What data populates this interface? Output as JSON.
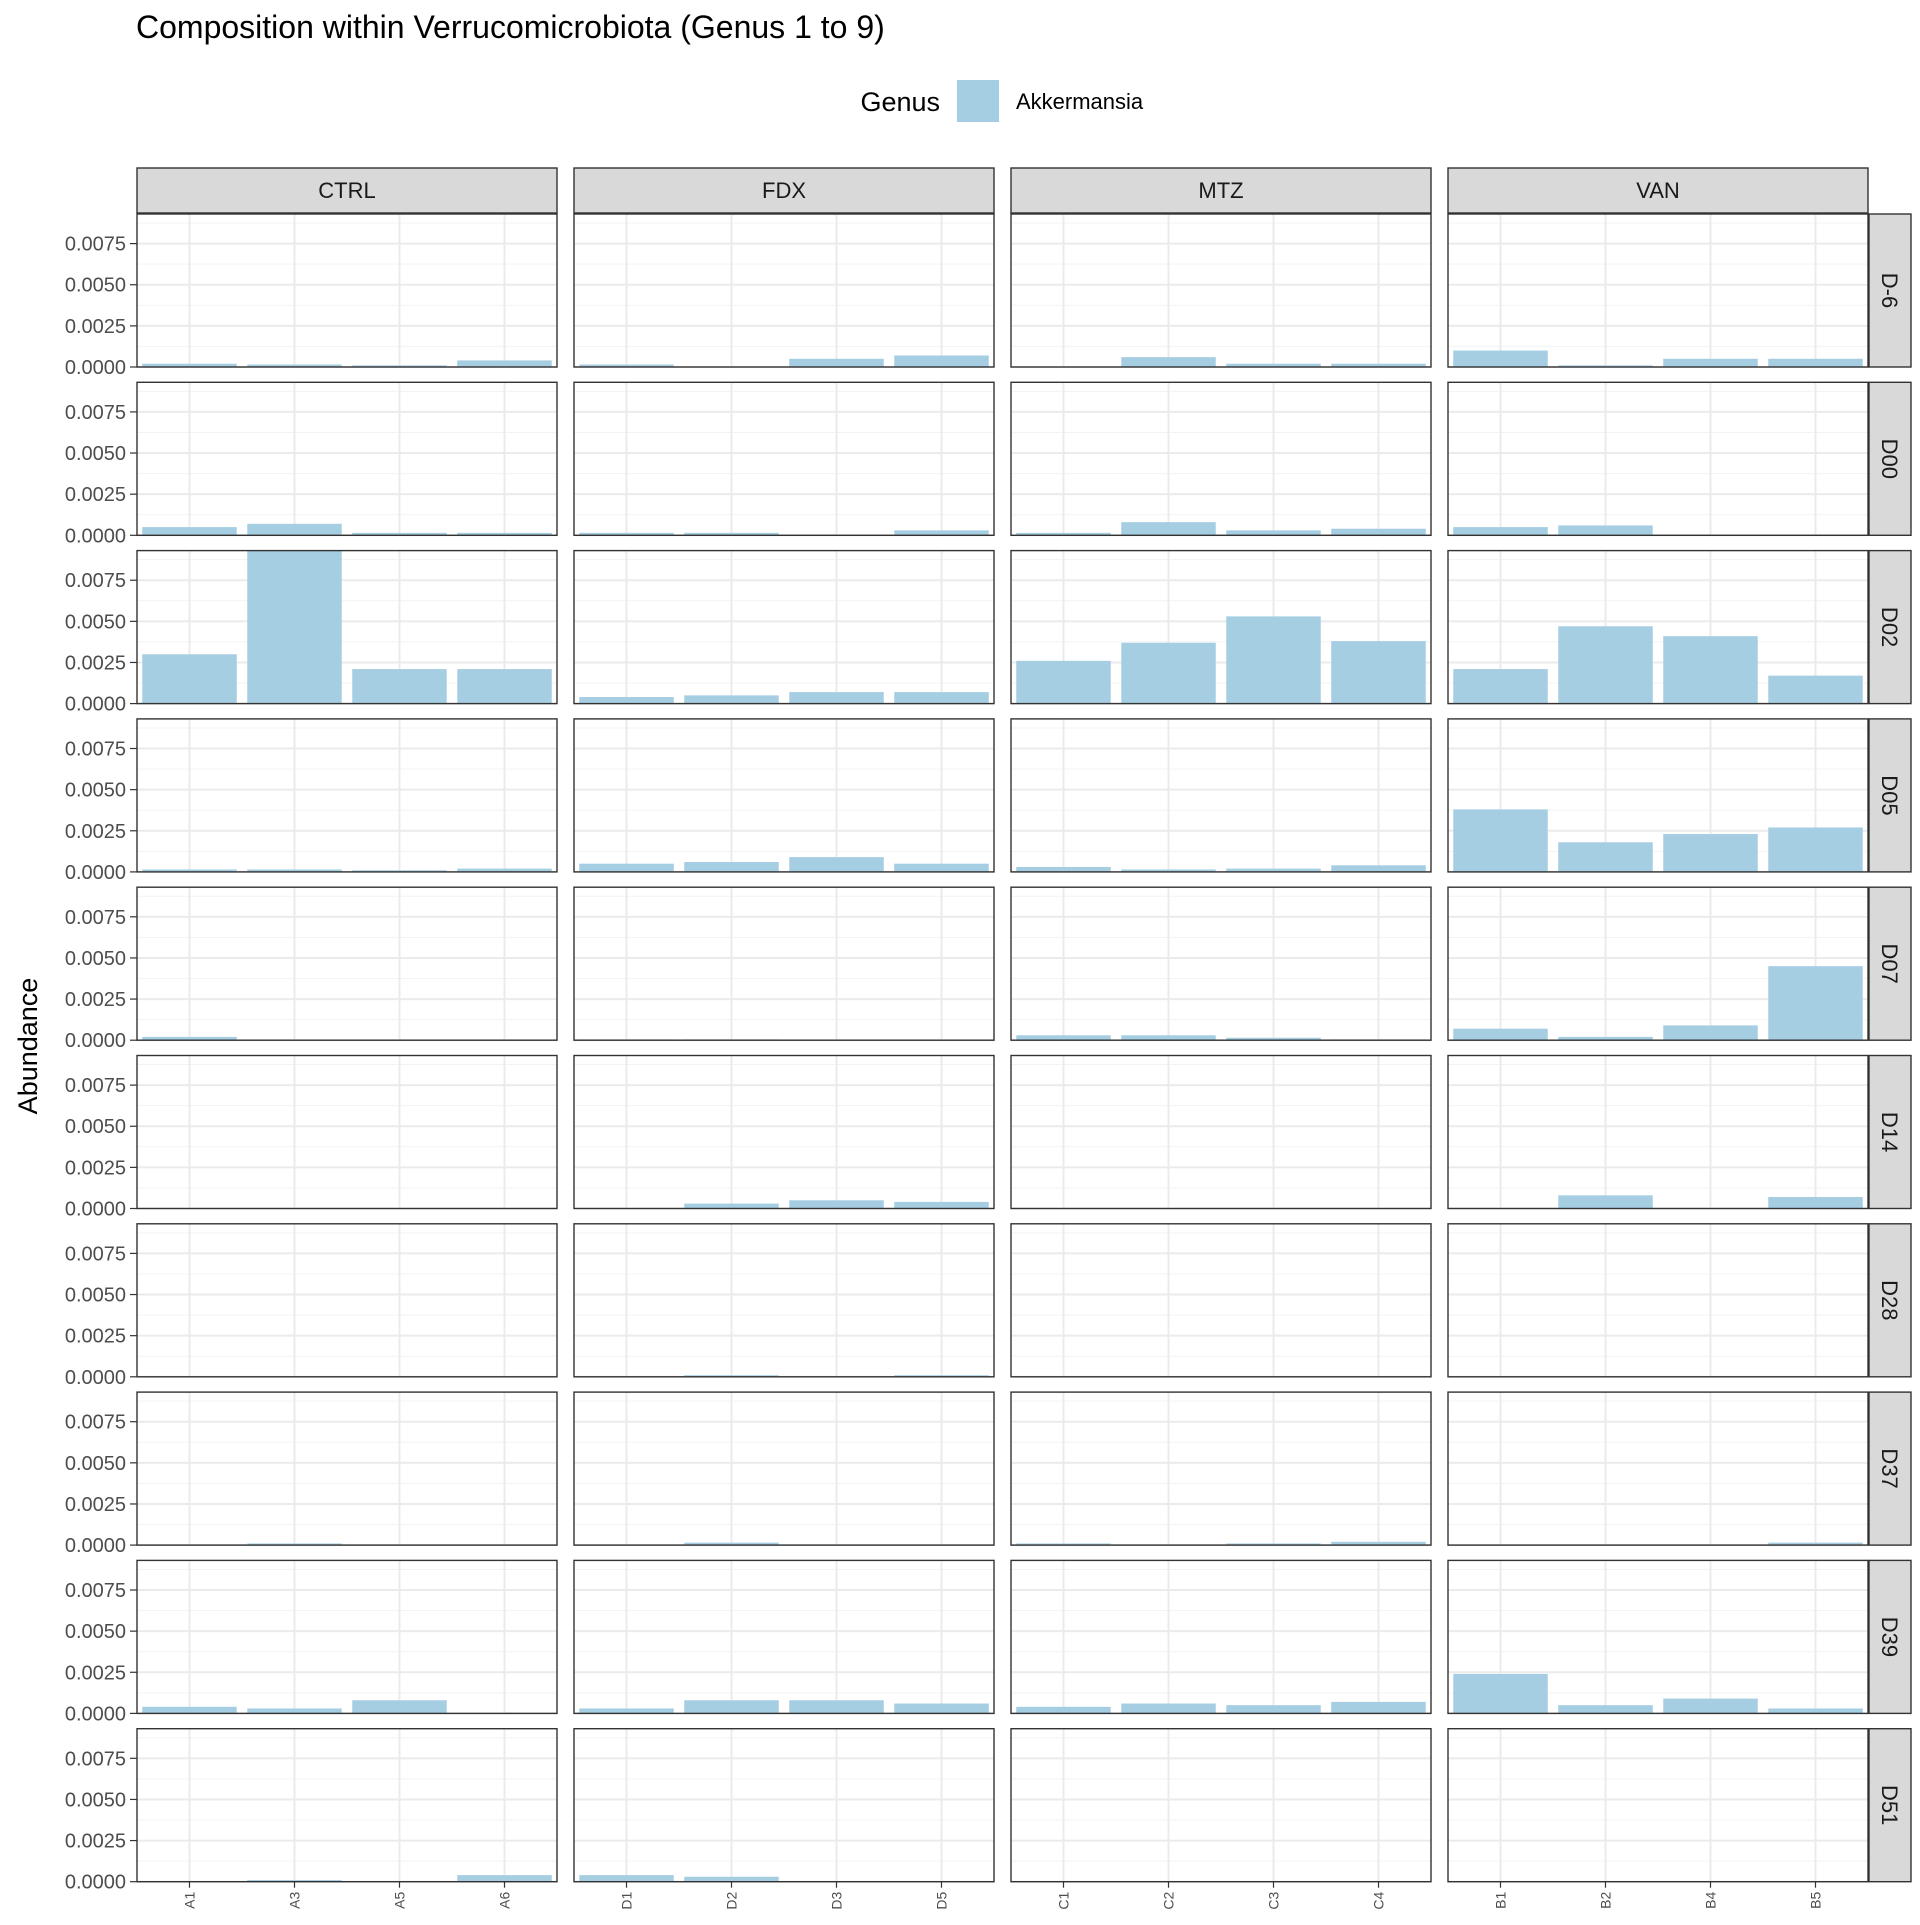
{
  "chart_data": {
    "type": "bar",
    "title": "Composition within Verrucomicrobiota (Genus 1 to 9)",
    "ylabel": "Abundance",
    "xlabel": "",
    "ylim": [
      0,
      0.0093
    ],
    "yticks": [
      "0.0000",
      "0.0025",
      "0.0050",
      "0.0075"
    ],
    "yticks_values": [
      0,
      0.0025,
      0.005,
      0.0075
    ],
    "grid": true,
    "legend": {
      "title": "Genus",
      "placement": "top",
      "entries": [
        {
          "name": "Akkermansia",
          "color": "#a6cee3"
        }
      ]
    },
    "col_facets": [
      {
        "label": "CTRL",
        "categories": [
          "A1",
          "A3",
          "A5",
          "A6"
        ]
      },
      {
        "label": "FDX",
        "categories": [
          "D1",
          "D2",
          "D3",
          "D5"
        ]
      },
      {
        "label": "MTZ",
        "categories": [
          "C1",
          "C2",
          "C3",
          "C4"
        ]
      },
      {
        "label": "VAN",
        "categories": [
          "B1",
          "B2",
          "B4",
          "B5"
        ]
      }
    ],
    "row_facets": [
      "D-6",
      "D00",
      "D02",
      "D05",
      "D07",
      "D14",
      "D28",
      "D37",
      "D39",
      "D51"
    ],
    "series": [
      {
        "name": "Akkermansia",
        "color": "#a6cee3",
        "values": [
          [
            [
              0.0002,
              0.00015,
              0.0001,
              0.0004
            ],
            [
              0.00015,
              0,
              0.0005,
              0.0007
            ],
            [
              0,
              0.0006,
              0.0002,
              0.0002
            ],
            [
              0.001,
              0.0001,
              0.0005,
              0.0005
            ]
          ],
          [
            [
              0.0005,
              0.0007,
              0.00015,
              0.00015
            ],
            [
              0.00015,
              0.00015,
              0,
              0.0003
            ],
            [
              0.00015,
              0.0008,
              0.0003,
              0.0004
            ],
            [
              0.0005,
              0.0006,
              0,
              0
            ]
          ],
          [
            [
              0.003,
              0.0093,
              0.0021,
              0.0021
            ],
            [
              0.0004,
              0.0005,
              0.0007,
              0.0007
            ],
            [
              0.0026,
              0.0037,
              0.0053,
              0.0038
            ],
            [
              0.0021,
              0.0047,
              0.0041,
              0.0017
            ]
          ],
          [
            [
              0.00015,
              0.00015,
              0.0001,
              0.0002
            ],
            [
              0.0005,
              0.0006,
              0.0009,
              0.0005
            ],
            [
              0.0003,
              0.00015,
              0.0002,
              0.0004
            ],
            [
              0.0038,
              0.0018,
              0.0023,
              0.0027
            ]
          ],
          [
            [
              0.0002,
              0,
              0,
              0
            ],
            [
              5e-05,
              5e-05,
              0,
              0
            ],
            [
              0.0003,
              0.0003,
              0.00015,
              5e-05
            ],
            [
              0.0007,
              0.0002,
              0.0009,
              0.0045
            ]
          ],
          [
            [
              0,
              0,
              0,
              0
            ],
            [
              0,
              0.0003,
              0.0005,
              0.0004
            ],
            [
              0,
              0,
              0,
              0
            ],
            [
              0,
              0.0008,
              0,
              0.0007
            ]
          ],
          [
            [
              0,
              0,
              0,
              0
            ],
            [
              0,
              0.0001,
              0,
              0.0001
            ],
            [
              0,
              0,
              0,
              0
            ],
            [
              0,
              0,
              0,
              0
            ]
          ],
          [
            [
              0,
              0.0001,
              0,
              0
            ],
            [
              0,
              0.00015,
              0,
              0
            ],
            [
              0.0001,
              0,
              0.0001,
              0.0002
            ],
            [
              0,
              0,
              0,
              0.00015
            ]
          ],
          [
            [
              0.0004,
              0.0003,
              0.0008,
              0
            ],
            [
              0.0003,
              0.0008,
              0.0008,
              0.0006
            ],
            [
              0.0004,
              0.0006,
              0.0005,
              0.0007
            ],
            [
              0.0024,
              0.0005,
              0.0009,
              0.0003
            ]
          ],
          [
            [
              0,
              0.0001,
              0,
              0.0004
            ],
            [
              0.0004,
              0.0003,
              0,
              0
            ],
            [
              0,
              0,
              0,
              0
            ],
            [
              0,
              0,
              0,
              0
            ]
          ]
        ]
      }
    ]
  }
}
